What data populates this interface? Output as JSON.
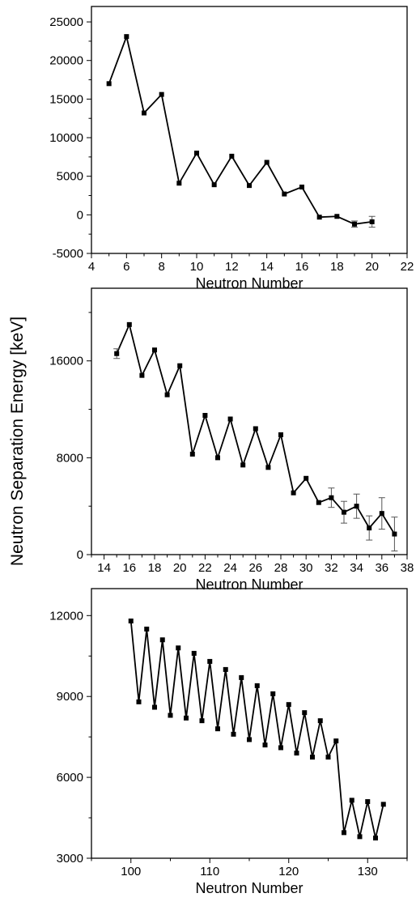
{
  "ylabel": "Neutron Separation Energy [keV]",
  "chart_data": [
    {
      "type": "line",
      "xlabel": "Neutron Number",
      "xlim": [
        4,
        22
      ],
      "ylim": [
        -5000,
        27000
      ],
      "xticks": [
        4,
        6,
        8,
        10,
        12,
        14,
        16,
        18,
        20,
        22
      ],
      "yticks": [
        -5000,
        0,
        5000,
        10000,
        15000,
        20000,
        25000
      ],
      "xtick_labels": [
        "4",
        "6",
        "8",
        "10",
        "12",
        "14",
        "16",
        "18",
        "20",
        "22"
      ],
      "ytick_labels": [
        "-5000",
        "0",
        "5000",
        "10000",
        "15000",
        "20000",
        "25000"
      ],
      "series": [
        {
          "x": [
            5,
            6,
            7,
            8,
            9,
            10,
            11,
            12,
            13,
            14,
            15,
            16,
            17,
            18,
            19,
            20
          ],
          "y": [
            17000,
            23100,
            13200,
            15600,
            4100,
            8000,
            3900,
            7600,
            3800,
            6800,
            2700,
            3600,
            -300,
            -200,
            -1200,
            -900
          ],
          "err": [
            0,
            0,
            0,
            0,
            0,
            0,
            0,
            0,
            0,
            0,
            0,
            0,
            0,
            0,
            400,
            700
          ]
        }
      ]
    },
    {
      "type": "line",
      "xlabel": "Neutron Number",
      "xlim": [
        13,
        38
      ],
      "ylim": [
        0,
        22000
      ],
      "xticks": [
        14,
        16,
        18,
        20,
        22,
        24,
        26,
        28,
        30,
        32,
        34,
        36,
        38
      ],
      "yticks": [
        0,
        8000,
        16000
      ],
      "xtick_labels": [
        "14",
        "16",
        "18",
        "20",
        "22",
        "24",
        "26",
        "28",
        "30",
        "32",
        "34",
        "36",
        "38"
      ],
      "ytick_labels": [
        "0",
        "8000",
        "16000"
      ],
      "series": [
        {
          "x": [
            15,
            16,
            17,
            18,
            19,
            20,
            21,
            22,
            23,
            24,
            25,
            26,
            27,
            28,
            29,
            30,
            31,
            32,
            33,
            34,
            35,
            36,
            37
          ],
          "y": [
            16600,
            19000,
            14800,
            16900,
            13200,
            15600,
            8300,
            11500,
            8000,
            11200,
            7400,
            10400,
            7200,
            9900,
            5100,
            6300,
            4300,
            4700,
            3500,
            4000,
            2200,
            3400,
            1700
          ],
          "err": [
            400,
            0,
            0,
            0,
            0,
            0,
            0,
            0,
            0,
            0,
            0,
            0,
            0,
            0,
            0,
            0,
            0,
            800,
            900,
            1000,
            1000,
            1300,
            1400
          ]
        }
      ]
    },
    {
      "type": "line",
      "xlabel": "Neutron Number",
      "xlim": [
        95,
        135
      ],
      "ylim": [
        3000,
        13000
      ],
      "xticks": [
        100,
        110,
        120,
        130
      ],
      "yticks": [
        3000,
        6000,
        9000,
        12000
      ],
      "xtick_labels": [
        "100",
        "110",
        "120",
        "130"
      ],
      "ytick_labels": [
        "3000",
        "6000",
        "9000",
        "12000"
      ],
      "series": [
        {
          "x": [
            100,
            101,
            102,
            103,
            104,
            105,
            106,
            107,
            108,
            109,
            110,
            111,
            112,
            113,
            114,
            115,
            116,
            117,
            118,
            119,
            120,
            121,
            122,
            123,
            124,
            125,
            126,
            127,
            128,
            129,
            130,
            131,
            132
          ],
          "y": [
            11800,
            8800,
            11500,
            8600,
            11100,
            8300,
            10800,
            8200,
            10600,
            8100,
            10300,
            7800,
            10000,
            7600,
            9700,
            7400,
            9400,
            7200,
            9100,
            7100,
            8700,
            6900,
            8400,
            6750,
            8100,
            6750,
            7350,
            3950,
            5150,
            3800,
            5100,
            3750,
            5000
          ],
          "err": []
        }
      ]
    }
  ]
}
